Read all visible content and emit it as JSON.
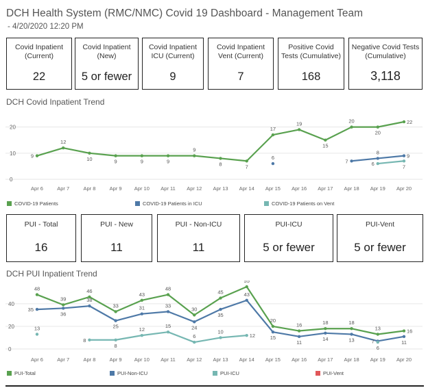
{
  "header": {
    "title": "DCH Health System (RMC/NMC) Covid 19 Dashboard - Management Team",
    "subtitle": "- 4/20/2020 12:20 PM"
  },
  "kpis_top": [
    {
      "label": "Covid Inpatient\n(Current)",
      "value": "22"
    },
    {
      "label": "Covid Inpatient\n(New)",
      "value": "5 or fewer"
    },
    {
      "label": "Covid Inpatient\nICU (Current)",
      "value": "9"
    },
    {
      "label": "Covid Inpatient\nVent (Current)",
      "value": "7"
    },
    {
      "label": "Positive Covid\nTests (Cumulative)",
      "value": "168"
    },
    {
      "label": "Negative Covid Tests\n(Cumulative)",
      "value": "3,118"
    }
  ],
  "kpis_pui": [
    {
      "label": "PUI - Total",
      "value": "16"
    },
    {
      "label": "PUI - New",
      "value": "11"
    },
    {
      "label": "PUI - Non-ICU",
      "value": "11"
    },
    {
      "label": "PUI-ICU",
      "value": "5 or fewer"
    },
    {
      "label": "PUI-Vent",
      "value": "5 or fewer"
    }
  ],
  "colors": {
    "green": "#59a14f",
    "blue": "#4e79a7",
    "teal": "#76b7b2",
    "red": "#e15759",
    "grid": "#e6e6e6",
    "axis_text": "#666666"
  },
  "chart_data": [
    {
      "type": "line",
      "title": "DCH Covid Inpatient Trend",
      "categories": [
        "Apr 6",
        "Apr 7",
        "Apr 8",
        "Apr 9",
        "Apr 10",
        "Apr 11",
        "Apr 12",
        "Apr 13",
        "Apr 14",
        "Apr 15",
        "Apr 16",
        "Apr 17",
        "Apr 18",
        "Apr 19",
        "Apr 20"
      ],
      "ylim": [
        0,
        22
      ],
      "yticks": [
        0,
        10,
        20
      ],
      "series": [
        {
          "name": "COVID-19 Patients",
          "color": "#59a14f",
          "values": [
            9,
            12,
            10,
            9,
            9,
            9,
            9,
            8,
            7,
            17,
            19,
            15,
            20,
            20,
            22
          ],
          "label_pos": [
            "l",
            "a",
            "b",
            "b",
            "b",
            "b",
            "a",
            "b",
            "b",
            "a",
            "a",
            "b",
            "a",
            "b",
            "r"
          ]
        },
        {
          "name": "COVID-19 Patients in ICU",
          "color": "#4e79a7",
          "values": [
            null,
            null,
            null,
            null,
            null,
            null,
            null,
            null,
            null,
            6,
            null,
            null,
            7,
            8,
            9
          ],
          "label_pos": [
            null,
            null,
            null,
            null,
            null,
            null,
            null,
            null,
            null,
            "a",
            null,
            null,
            "l",
            "a",
            "r"
          ]
        },
        {
          "name": "COVID-19 Patients on Vent",
          "color": "#76b7b2",
          "values": [
            null,
            null,
            null,
            null,
            null,
            null,
            null,
            null,
            null,
            null,
            null,
            null,
            null,
            6,
            7
          ],
          "label_pos": [
            null,
            null,
            null,
            null,
            null,
            null,
            null,
            null,
            null,
            null,
            null,
            null,
            null,
            "l",
            "b"
          ]
        }
      ]
    },
    {
      "type": "line",
      "title": "DCH PUI Inpatient Trend",
      "categories": [
        "Apr 6",
        "Apr 7",
        "Apr 8",
        "Apr 9",
        "Apr 10",
        "Apr 11",
        "Apr 12",
        "Apr 13",
        "Apr 14",
        "Apr 15",
        "Apr 16",
        "Apr 17",
        "Apr 18",
        "Apr 19",
        "Apr 20"
      ],
      "ylim": [
        0,
        55
      ],
      "yticks": [
        0,
        20,
        40
      ],
      "series": [
        {
          "name": "PUI-Total",
          "color": "#59a14f",
          "values": [
            48,
            39,
            46,
            33,
            43,
            48,
            30,
            45,
            55,
            20,
            16,
            18,
            18,
            13,
            16
          ],
          "label_pos": [
            "a",
            "a",
            "a",
            "a",
            "a",
            "a",
            "a",
            "a",
            "a",
            "a",
            "a",
            "a",
            "a",
            "a",
            "r"
          ]
        },
        {
          "name": "PUI-Non-ICU",
          "color": "#4e79a7",
          "values": [
            35,
            36,
            38,
            25,
            31,
            33,
            24,
            35,
            43,
            15,
            11,
            14,
            13,
            7,
            11
          ],
          "label_pos": [
            "l",
            "b",
            "a",
            "b",
            "a",
            "a",
            "b",
            "b",
            "a",
            "b",
            "b",
            "b",
            "b",
            "l",
            "b"
          ]
        },
        {
          "name": "PUI-ICU",
          "color": "#76b7b2",
          "values": [
            13,
            null,
            8,
            8,
            12,
            15,
            6,
            10,
            12,
            null,
            null,
            null,
            null,
            6,
            null
          ],
          "label_pos": [
            "a",
            null,
            "l",
            "b",
            "a",
            "a",
            "a",
            "a",
            "r",
            null,
            null,
            null,
            null,
            "b",
            null
          ]
        },
        {
          "name": "PUI-Vent",
          "color": "#e15759",
          "values": [
            null,
            null,
            null,
            null,
            null,
            null,
            null,
            null,
            null,
            null,
            null,
            null,
            null,
            null,
            null
          ],
          "label_pos": []
        }
      ]
    }
  ]
}
